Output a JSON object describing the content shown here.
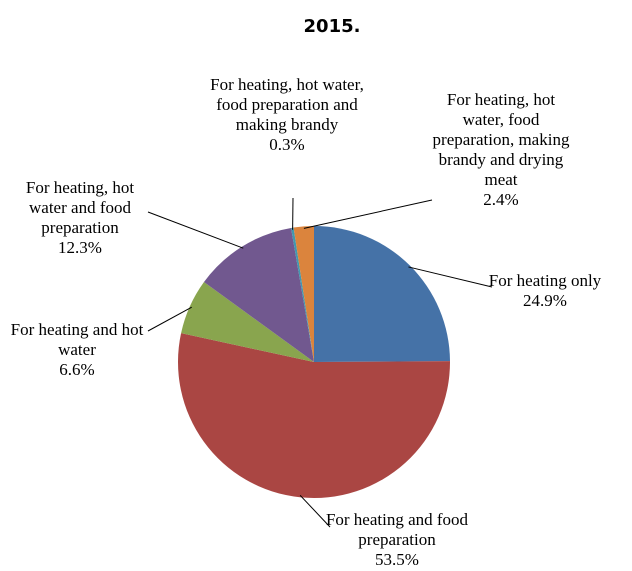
{
  "chart_data": {
    "type": "pie",
    "title": "2015.",
    "categories": [
      "For heating only",
      "For heating and food preparation",
      "For heating and hot water",
      "For heating, hot water and food preparation",
      "For heating, hot water, food preparation and making brandy",
      "For heating, hot water, food preparation, making brandy and drying meat"
    ],
    "values": [
      24.9,
      53.5,
      6.6,
      12.3,
      0.3,
      2.4
    ],
    "value_labels": [
      "24.9%",
      "53.5%",
      "6.6%",
      "12.3%",
      "0.3%",
      "2.4%"
    ],
    "colors": [
      "#4572a7",
      "#aa4643",
      "#89a54e",
      "#71588f",
      "#4198af",
      "#db843d"
    ]
  }
}
